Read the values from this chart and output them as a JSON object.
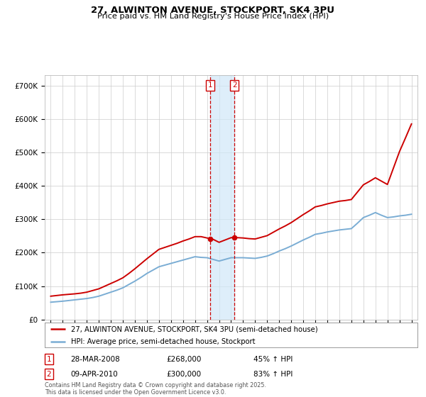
{
  "title": "27, ALWINTON AVENUE, STOCKPORT, SK4 3PU",
  "subtitle": "Price paid vs. HM Land Registry's House Price Index (HPI)",
  "hpi_color": "#7aadd4",
  "price_color": "#cc0000",
  "background_color": "#ffffff",
  "grid_color": "#cccccc",
  "ylim": [
    0,
    730000
  ],
  "yticks": [
    0,
    100000,
    200000,
    300000,
    400000,
    500000,
    600000,
    700000
  ],
  "ytick_labels": [
    "£0",
    "£100K",
    "£200K",
    "£300K",
    "£400K",
    "£500K",
    "£600K",
    "£700K"
  ],
  "xlim_start": 1994.5,
  "xlim_end": 2025.5,
  "transaction1_x": 2008.24,
  "transaction1_label": "1",
  "transaction1_price": 268000,
  "transaction1_date": "28-MAR-2008",
  "transaction1_hpi": "45% ↑ HPI",
  "transaction2_x": 2010.27,
  "transaction2_label": "2",
  "transaction2_price": 300000,
  "transaction2_date": "09-APR-2010",
  "transaction2_hpi": "83% ↑ HPI",
  "legend_line1": "27, ALWINTON AVENUE, STOCKPORT, SK4 3PU (semi-detached house)",
  "legend_line2": "HPI: Average price, semi-detached house, Stockport",
  "footnote": "Contains HM Land Registry data © Crown copyright and database right 2025.\nThis data is licensed under the Open Government Licence v3.0.",
  "hpi_years": [
    1995,
    1995.5,
    1996,
    1996.5,
    1997,
    1997.5,
    1998,
    1998.5,
    1999,
    1999.5,
    2000,
    2000.5,
    2001,
    2001.5,
    2002,
    2002.5,
    2003,
    2003.5,
    2004,
    2004.5,
    2005,
    2005.5,
    2006,
    2006.5,
    2007,
    2007.5,
    2008,
    2008.5,
    2009,
    2009.5,
    2010,
    2010.5,
    2011,
    2011.5,
    2012,
    2012.5,
    2013,
    2013.5,
    2014,
    2014.5,
    2015,
    2015.5,
    2016,
    2016.5,
    2017,
    2017.5,
    2018,
    2018.5,
    2019,
    2019.5,
    2020,
    2020.5,
    2021,
    2021.5,
    2022,
    2022.5,
    2023,
    2023.5,
    2024,
    2024.5,
    2025
  ],
  "hpi_values": [
    52000,
    53500,
    55000,
    57000,
    59000,
    61000,
    63000,
    66000,
    70000,
    76000,
    82000,
    88000,
    95000,
    105000,
    115000,
    126000,
    138000,
    148000,
    158000,
    163000,
    168000,
    173000,
    178000,
    183000,
    188000,
    186000,
    185000,
    180000,
    175000,
    180000,
    185000,
    185000,
    185000,
    184000,
    183000,
    186000,
    190000,
    197000,
    205000,
    212000,
    220000,
    229000,
    238000,
    246000,
    255000,
    258000,
    262000,
    265000,
    268000,
    270000,
    272000,
    288000,
    305000,
    312000,
    320000,
    312000,
    305000,
    307000,
    310000,
    312000,
    315000
  ],
  "price_years": [
    1995,
    1995.5,
    1996,
    1996.5,
    1997,
    1997.5,
    1998,
    1998.5,
    1999,
    1999.5,
    2000,
    2000.5,
    2001,
    2001.5,
    2002,
    2002.5,
    2003,
    2003.5,
    2004,
    2004.5,
    2005,
    2005.5,
    2006,
    2006.5,
    2007,
    2007.5,
    2008,
    2008.5,
    2009,
    2009.5,
    2010,
    2010.5,
    2011,
    2011.5,
    2012,
    2012.5,
    2013,
    2013.5,
    2014,
    2014.5,
    2015,
    2015.5,
    2016,
    2016.5,
    2017,
    2017.5,
    2018,
    2018.5,
    2019,
    2019.5,
    2020,
    2020.5,
    2021,
    2021.5,
    2022,
    2022.5,
    2023,
    2023.5,
    2024,
    2024.5,
    2025
  ],
  "price_values": [
    70000,
    72000,
    74000,
    75500,
    77000,
    79000,
    82000,
    87000,
    92000,
    100000,
    108000,
    116000,
    125000,
    138000,
    152000,
    167000,
    182000,
    196000,
    210000,
    216000,
    222000,
    228000,
    235000,
    241000,
    248000,
    248000,
    244000,
    240000,
    231000,
    238000,
    245000,
    245000,
    244000,
    242000,
    241000,
    246000,
    251000,
    261000,
    271000,
    280000,
    290000,
    302000,
    314000,
    325000,
    337000,
    341000,
    346000,
    350000,
    354000,
    356000,
    359000,
    381000,
    403000,
    413000,
    424000,
    414000,
    404000,
    453000,
    502000,
    543000,
    585000
  ]
}
